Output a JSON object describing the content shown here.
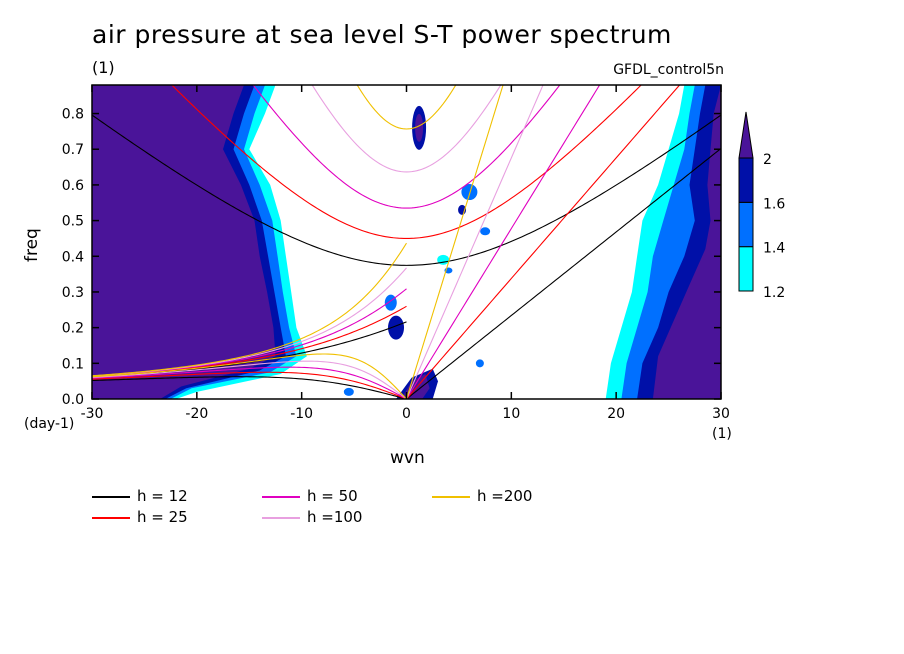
{
  "title": "air pressure at sea level S-T power spectrum",
  "units_label": "(1)",
  "dataset_label": "GFDL_control5n",
  "y_units_label": "(day-1)",
  "x_units_label": "(1)",
  "chart_data": {
    "type": "heatmap",
    "title": "air pressure at sea level S-T power spectrum",
    "xlabel": "wvn",
    "ylabel": "freq",
    "xlim": [
      -30,
      30
    ],
    "ylim": [
      0,
      0.88
    ],
    "x_ticks": [
      -30,
      -20,
      -10,
      0,
      10,
      20,
      30
    ],
    "x_tick_labels": [
      "-30",
      "-20",
      "-10",
      "0",
      "10",
      "20",
      "30"
    ],
    "y_ticks": [
      0,
      0.1,
      0.2,
      0.3,
      0.4,
      0.5,
      0.6,
      0.7,
      0.8
    ],
    "y_tick_labels": [
      "0.0",
      "0.1",
      "0.2",
      "0.3",
      "0.4",
      "0.5",
      "0.6",
      "0.7",
      "0.8"
    ],
    "colorbar": {
      "levels": [
        1.2,
        1.4,
        1.6,
        2
      ],
      "labels": [
        "1.2",
        "1.4",
        "1.6",
        "2"
      ],
      "colors": [
        "#00ffff",
        "#0070ff",
        "#0010a8",
        "#4a1499"
      ]
    },
    "dispersion_curves": [
      {
        "name": "h = 12",
        "h": 12,
        "color": "#000000"
      },
      {
        "name": "h = 25",
        "h": 25,
        "color": "#ff0000"
      },
      {
        "name": "h = 50",
        "h": 50,
        "color": "#e000c0"
      },
      {
        "name": "h =100",
        "h": 100,
        "color": "#e8a0e0"
      },
      {
        "name": "h =200",
        "h": 200,
        "color": "#f0c000"
      }
    ],
    "legend_position": "bottom"
  }
}
